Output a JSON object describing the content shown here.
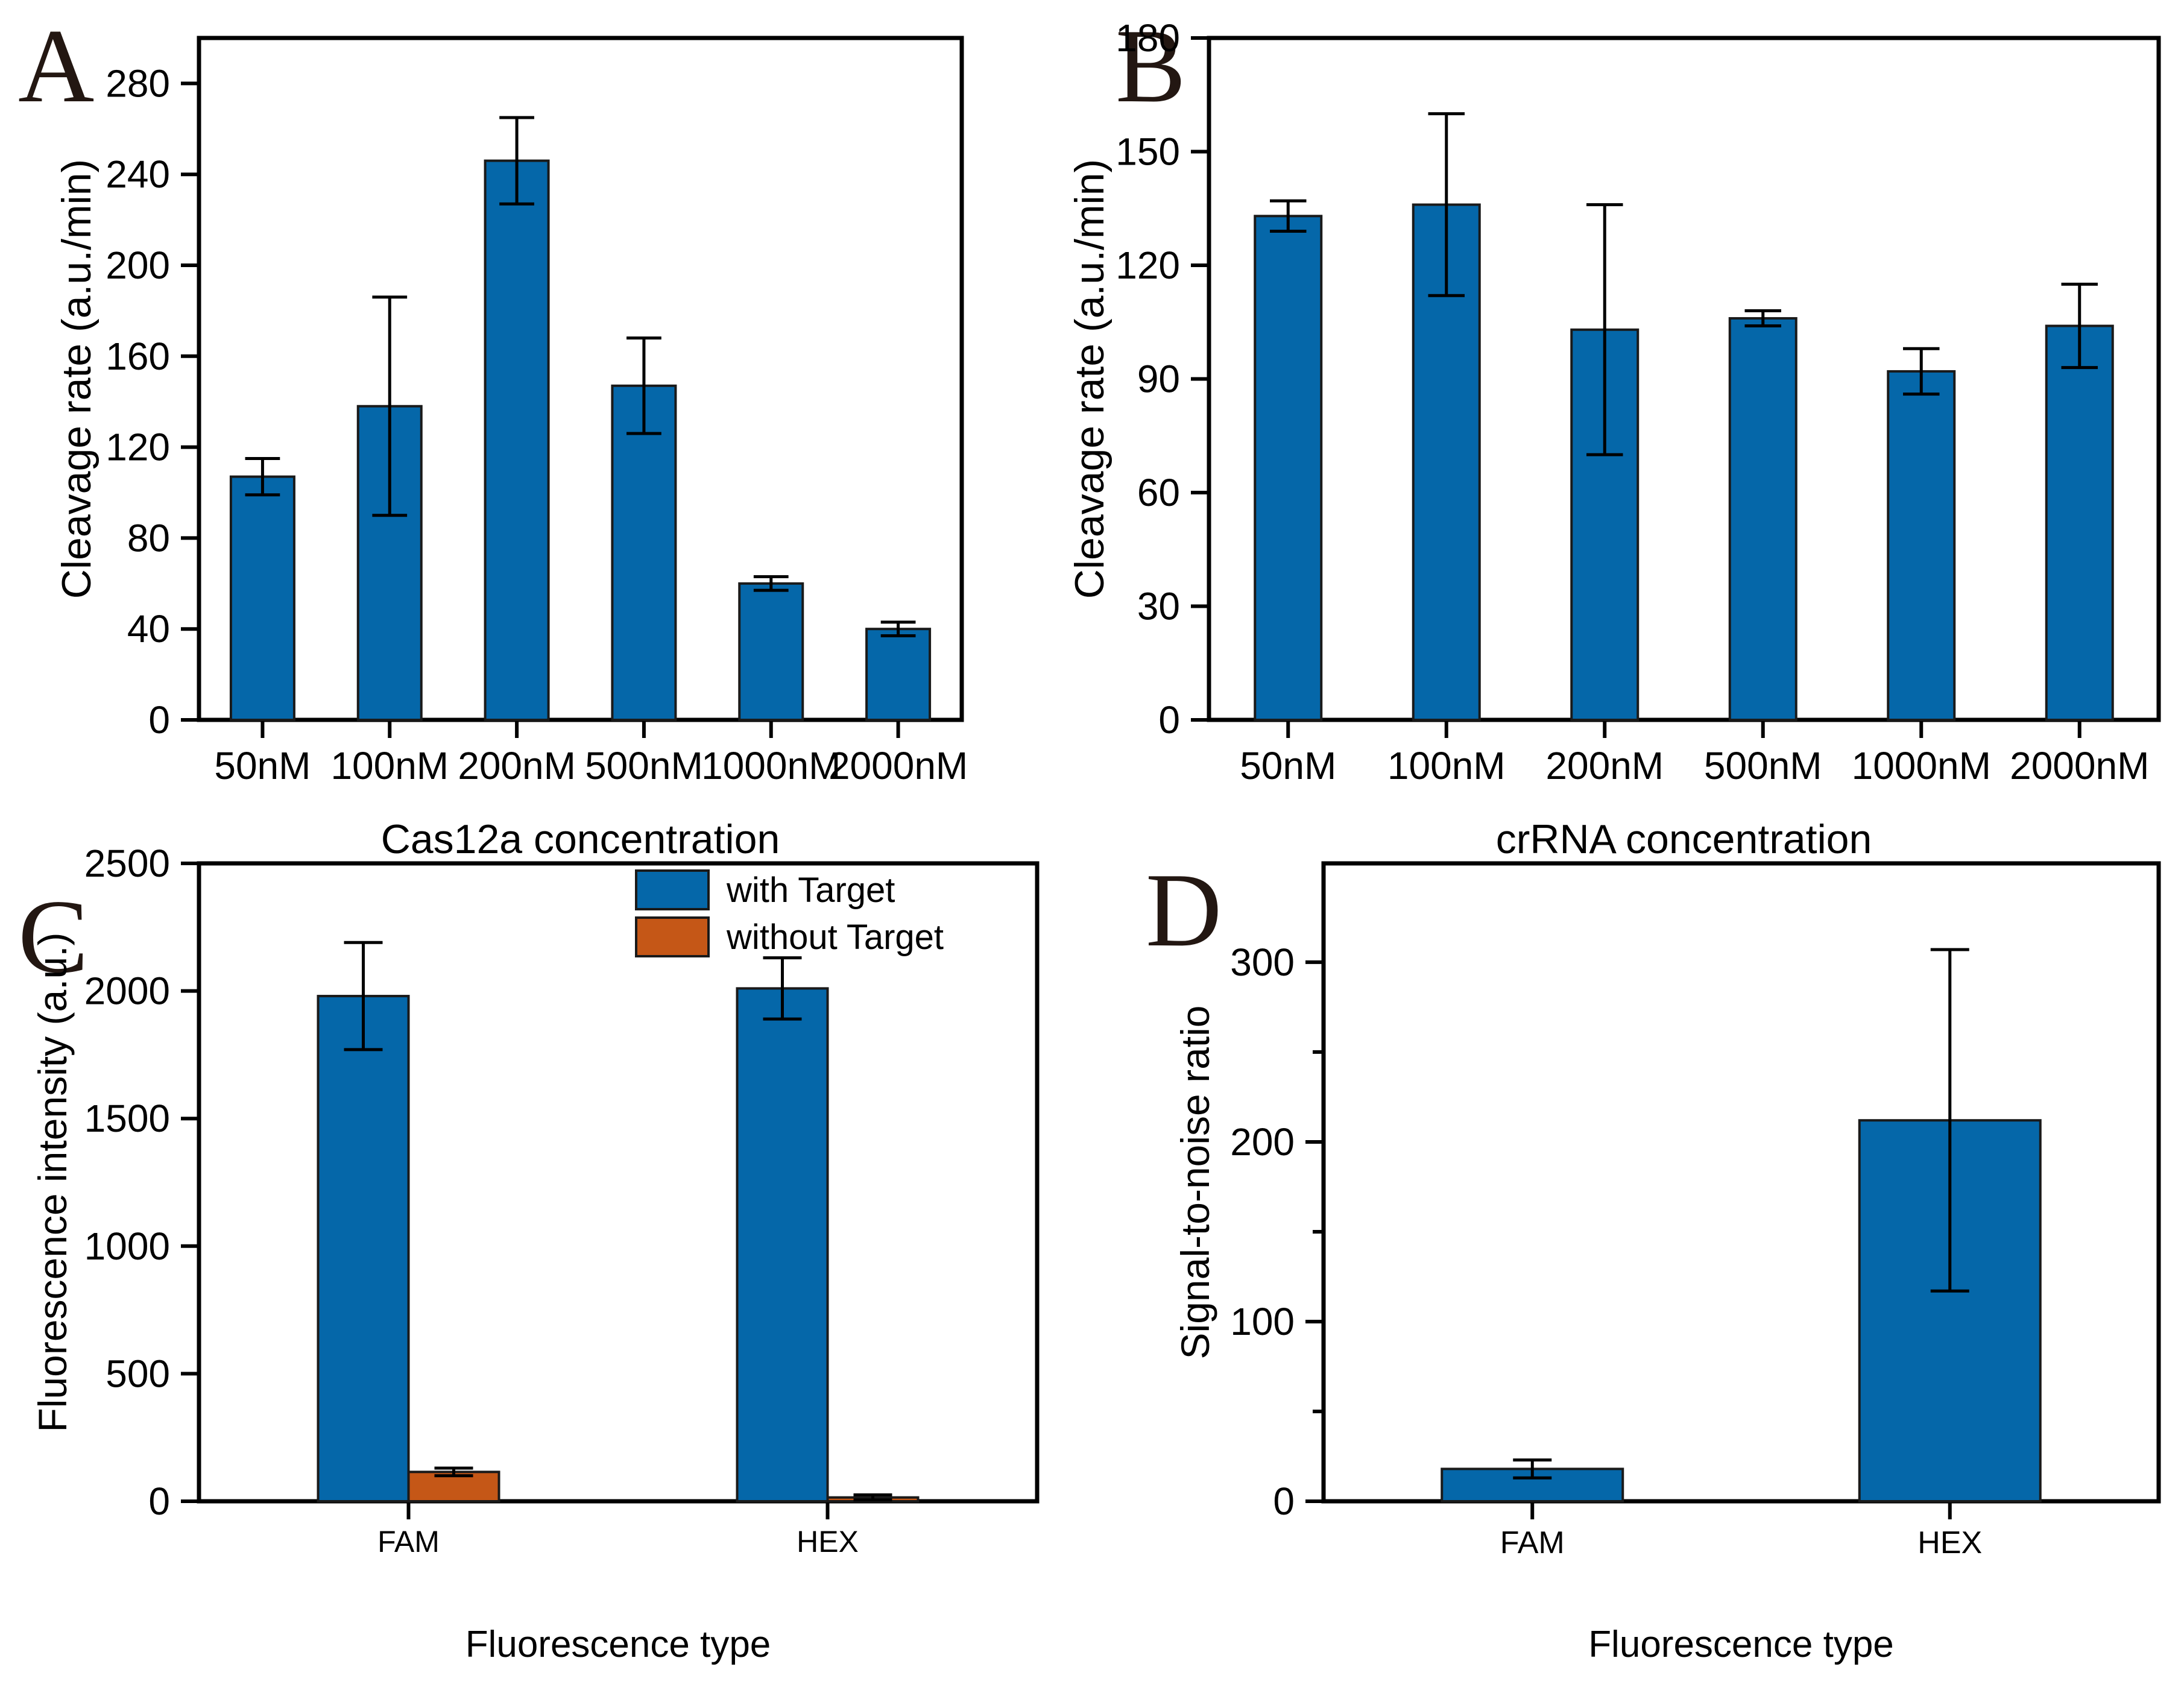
{
  "figure_background": "#ffffff",
  "colors": {
    "bar_blue": "#0567A9",
    "bar_orange": "#C55717",
    "axis": "#000000",
    "panel_letter": "#231712"
  },
  "chart_data": [
    {
      "id": "A",
      "type": "bar",
      "panel_label": "A",
      "ylabel": "Cleavage rate (a.u./min)",
      "xlabel": "Cas12a concentration",
      "categories": [
        "50nM",
        "100nM",
        "200nM",
        "500nM",
        "1000nM",
        "2000nM"
      ],
      "series": [
        {
          "name": "Cleavage rate",
          "color": "#0567A9",
          "values": [
            107,
            138,
            246,
            147,
            60,
            40
          ],
          "errors": [
            8,
            48,
            19,
            21,
            3,
            3
          ]
        }
      ],
      "ylim": [
        0,
        300
      ],
      "ytick_step": 40,
      "ytick_max": 280,
      "grid": false,
      "legend": false,
      "legend_position": "none"
    },
    {
      "id": "B",
      "type": "bar",
      "panel_label": "B",
      "ylabel": "Cleavage rate (a.u./min)",
      "xlabel": "crRNA concentration",
      "categories": [
        "50nM",
        "100nM",
        "200nM",
        "500nM",
        "1000nM",
        "2000nM"
      ],
      "series": [
        {
          "name": "Cleavage rate",
          "color": "#0567A9",
          "values": [
            133,
            136,
            103,
            106,
            92,
            104
          ],
          "errors": [
            4,
            24,
            33,
            2,
            6,
            11
          ]
        }
      ],
      "ylim": [
        0,
        180
      ],
      "ytick_step": 30,
      "ytick_max": 180,
      "grid": false,
      "legend": false,
      "legend_position": "none"
    },
    {
      "id": "C",
      "type": "bar",
      "panel_label": "C",
      "ylabel": "Fluorescence intensity (a.u.)",
      "xlabel": "Fluorescence type",
      "categories": [
        "FAM",
        "HEX"
      ],
      "series": [
        {
          "name": "with Target",
          "color": "#0567A9",
          "values": [
            1980,
            2010
          ],
          "errors": [
            210,
            120
          ]
        },
        {
          "name": "without Target",
          "color": "#C55717",
          "values": [
            115,
            15
          ],
          "errors": [
            15,
            10
          ]
        }
      ],
      "ylim": [
        0,
        2500
      ],
      "ytick_step": 500,
      "ytick_max": 2500,
      "grid": false,
      "legend": true,
      "legend_position": "top-right"
    },
    {
      "id": "D",
      "type": "bar",
      "panel_label": "D",
      "ylabel": "Signal-to-noise ratio",
      "xlabel": "Fluorescence type",
      "categories": [
        "FAM",
        "HEX"
      ],
      "series": [
        {
          "name": "Signal-to-noise ratio",
          "color": "#0567A9",
          "values": [
            18,
            212
          ],
          "errors": [
            5,
            95
          ]
        }
      ],
      "ylim": [
        0,
        355
      ],
      "ytick_step": 100,
      "ytick_max": 300,
      "ytick_minor_step": 50,
      "grid": false,
      "legend": false,
      "legend_position": "none"
    }
  ]
}
